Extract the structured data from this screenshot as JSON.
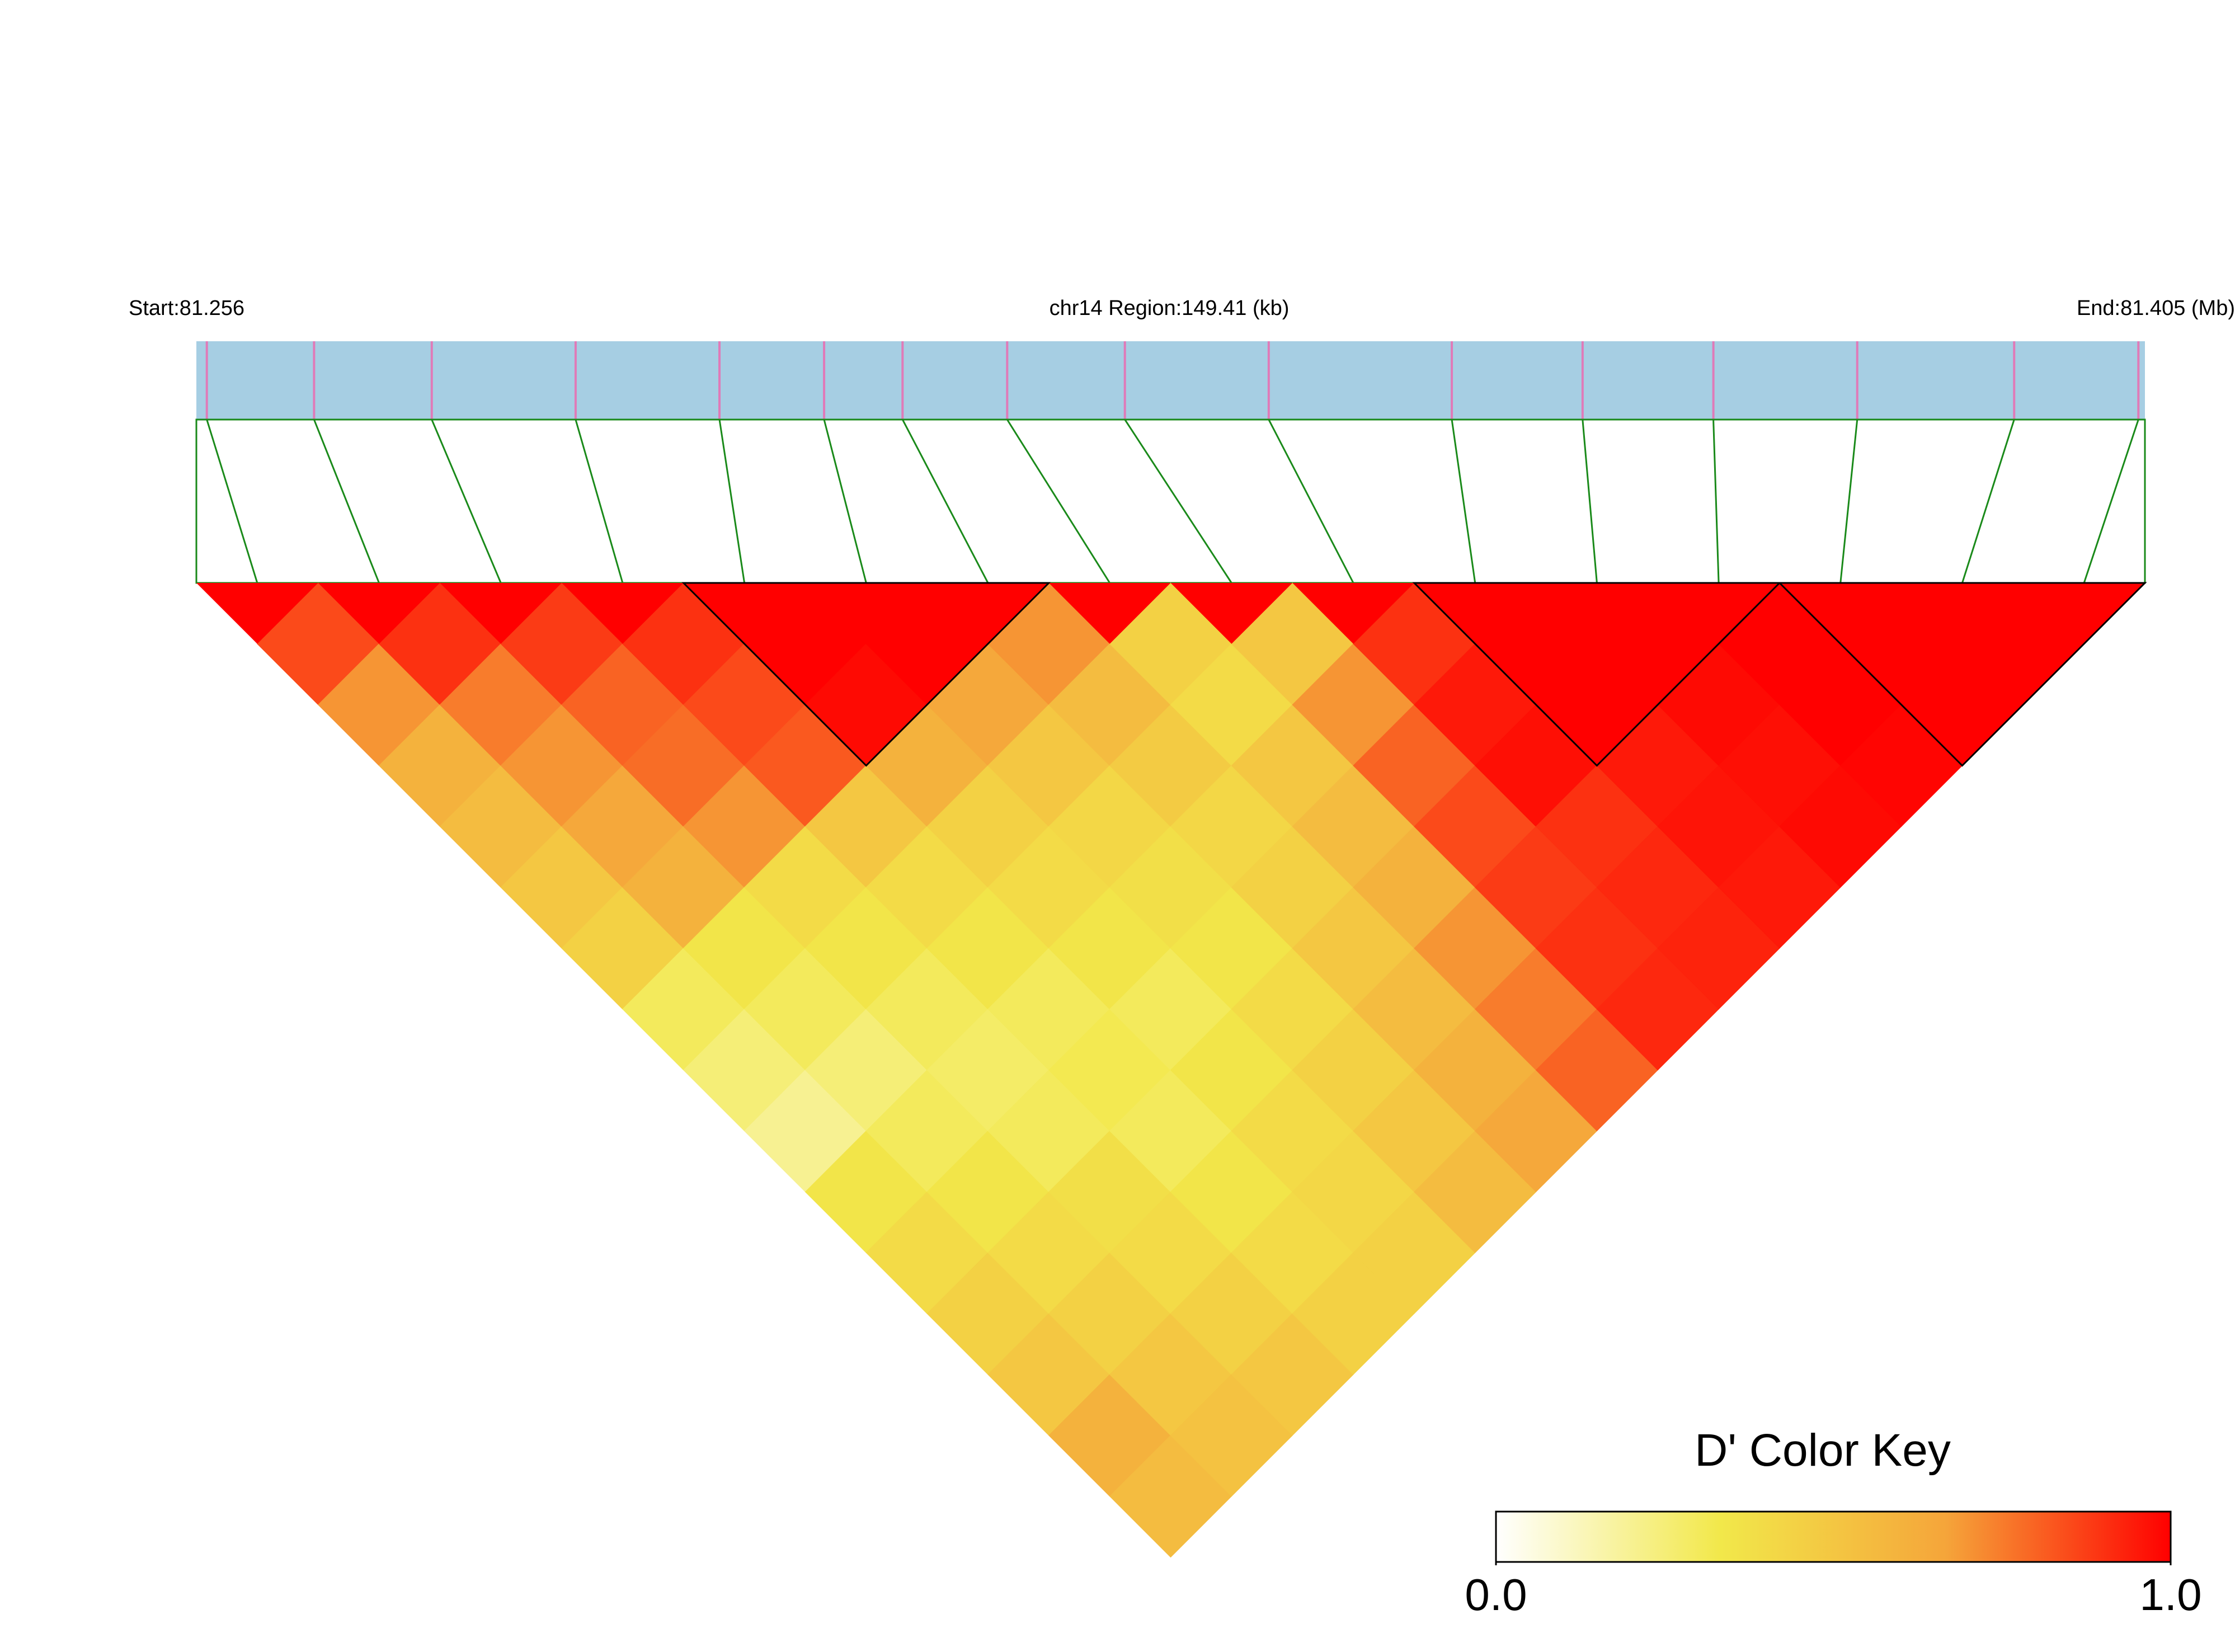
{
  "chart_data": {
    "type": "ld_heatmap",
    "start_label": "Start:81.256",
    "region_label": "chr14 Region:149.41 (kb)",
    "end_label": "End:81.405 (Mb)",
    "xlim": [
      81.256,
      81.405
    ],
    "positions": [
      81.2568,
      81.265,
      81.274,
      81.285,
      81.296,
      81.304,
      81.31,
      81.318,
      81.327,
      81.338,
      81.352,
      81.362,
      81.372,
      81.383,
      81.395,
      81.4045
    ],
    "dprime": [
      [
        0.85
      ],
      [
        0.7,
        0.9
      ],
      [
        0.6,
        0.75,
        0.88
      ],
      [
        0.55,
        0.7,
        0.8,
        0.9
      ],
      [
        0.5,
        0.65,
        0.78,
        0.85,
        1
      ],
      [
        0.45,
        0.6,
        0.7,
        0.82,
        0.98,
        1
      ],
      [
        0.3,
        0.35,
        0.4,
        0.5,
        0.6,
        0.65,
        0.7
      ],
      [
        0.25,
        0.3,
        0.35,
        0.4,
        0.45,
        0.5,
        0.55,
        0.45
      ],
      [
        0.2,
        0.25,
        0.3,
        0.35,
        0.4,
        0.42,
        0.48,
        0.4,
        0.5
      ],
      [
        0.35,
        0.3,
        0.28,
        0.3,
        0.35,
        0.38,
        0.42,
        0.5,
        0.7,
        0.9
      ],
      [
        0.4,
        0.35,
        0.3,
        0.32,
        0.3,
        0.35,
        0.45,
        0.55,
        0.8,
        0.95,
        1
      ],
      [
        0.45,
        0.4,
        0.38,
        0.3,
        0.35,
        0.4,
        0.5,
        0.6,
        0.85,
        0.97,
        1,
        1
      ],
      [
        0.5,
        0.45,
        0.4,
        0.35,
        0.4,
        0.45,
        0.55,
        0.7,
        0.88,
        0.9,
        0.95,
        0.98,
        1
      ],
      [
        0.6,
        0.5,
        0.45,
        0.4,
        0.42,
        0.5,
        0.6,
        0.75,
        0.9,
        0.92,
        0.96,
        0.97,
        1,
        1
      ],
      [
        0.55,
        0.52,
        0.5,
        0.45,
        0.45,
        0.55,
        0.65,
        0.8,
        0.92,
        0.93,
        0.95,
        0.98,
        0.99,
        1,
        1
      ]
    ],
    "blocks": [
      [
        4,
        6
      ],
      [
        10,
        12
      ],
      [
        13,
        15
      ]
    ],
    "gene_bar_color": "#a6cee3",
    "snp_tick_color": "#e07ab8",
    "connector_color": "#1a8a1a",
    "color_key_title": "D' Color Key",
    "colors": [
      "#ffffff",
      "#f2e84a",
      "#f5a53a",
      "#ff0000"
    ],
    "clim": [
      0,
      1
    ],
    "cticks": [
      {
        "value": 0,
        "label": "0.0"
      },
      {
        "value": 1,
        "label": "1.0"
      }
    ]
  }
}
